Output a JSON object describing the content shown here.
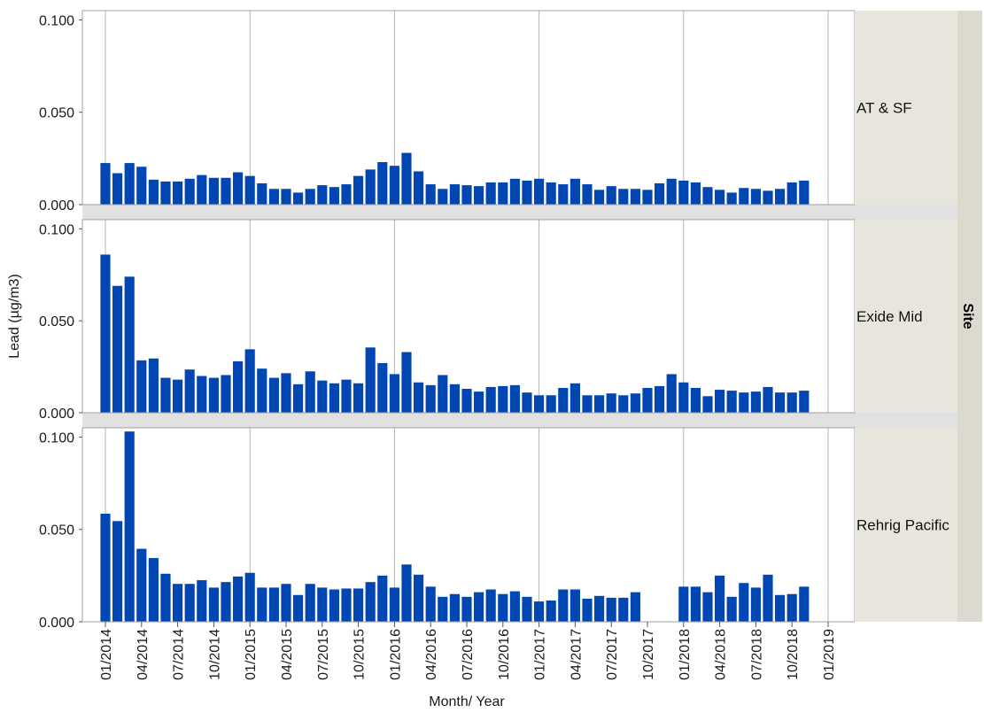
{
  "chart_data": {
    "type": "bar",
    "xlabel": "Month/ Year",
    "ylabel": "Lead (µg/m3)",
    "group_title": "Site",
    "ylim": [
      0,
      0.105
    ],
    "y_ticks": [
      "0.000",
      "0.050",
      "0.100"
    ],
    "x_ticks": [
      "01/2014",
      "04/2014",
      "07/2014",
      "10/2014",
      "01/2015",
      "04/2015",
      "07/2015",
      "10/2015",
      "01/2016",
      "04/2016",
      "07/2016",
      "10/2016",
      "01/2017",
      "04/2017",
      "07/2017",
      "10/2017",
      "01/2018",
      "04/2018",
      "07/2018",
      "10/2018",
      "01/2019"
    ],
    "x_start": "2014-01",
    "bar_color": "#0047b3",
    "panel_bg": "#e8e6dc",
    "group_bg": "#dcdace",
    "separator_bg": "#e1e1e1",
    "panels": [
      {
        "name": "AT & SF",
        "values": [
          0.0225,
          0.017,
          0.0225,
          0.0205,
          0.0135,
          0.0125,
          0.0125,
          0.014,
          0.016,
          0.0145,
          0.0145,
          0.0175,
          0.0155,
          0.0115,
          0.0085,
          0.0085,
          0.0065,
          0.0085,
          0.0105,
          0.0095,
          0.011,
          0.0155,
          0.019,
          0.023,
          0.021,
          0.028,
          0.018,
          0.011,
          0.0085,
          0.011,
          0.0105,
          0.01,
          0.012,
          0.012,
          0.014,
          0.013,
          0.014,
          0.012,
          0.011,
          0.014,
          0.011,
          0.008,
          0.01,
          0.0085,
          0.0085,
          0.008,
          0.0115,
          0.014,
          0.013,
          0.012,
          0.0095,
          0.008,
          0.0065,
          0.009,
          0.0085,
          0.0075,
          0.0085,
          0.012,
          0.013
        ]
      },
      {
        "name": "Exide Mid",
        "values": [
          0.086,
          0.069,
          0.074,
          0.0285,
          0.0295,
          0.019,
          0.018,
          0.0235,
          0.02,
          0.019,
          0.0205,
          0.028,
          0.0345,
          0.024,
          0.019,
          0.0215,
          0.0155,
          0.0225,
          0.0175,
          0.016,
          0.018,
          0.016,
          0.0355,
          0.027,
          0.021,
          0.033,
          0.0165,
          0.015,
          0.0205,
          0.0155,
          0.013,
          0.0115,
          0.014,
          0.0145,
          0.015,
          0.011,
          0.0095,
          0.0095,
          0.0135,
          0.016,
          0.0095,
          0.0095,
          0.0105,
          0.0095,
          0.0105,
          0.0135,
          0.0145,
          0.021,
          0.0165,
          0.0135,
          0.009,
          0.0125,
          0.012,
          0.011,
          0.0115,
          0.014,
          0.011,
          0.011,
          0.012
        ]
      },
      {
        "name": "Rehrig Pacific",
        "values": [
          0.0585,
          0.0545,
          0.103,
          0.0395,
          0.0345,
          0.026,
          0.0205,
          0.0205,
          0.0225,
          0.0185,
          0.0215,
          0.0245,
          0.0265,
          0.0185,
          0.0185,
          0.0205,
          0.0145,
          0.0205,
          0.0185,
          0.0175,
          0.018,
          0.018,
          0.0215,
          0.025,
          0.0185,
          0.031,
          0.0255,
          0.019,
          0.0135,
          0.015,
          0.0135,
          0.016,
          0.0175,
          0.015,
          0.0165,
          0.0135,
          0.011,
          0.0115,
          0.0175,
          0.0175,
          0.0125,
          0.014,
          0.013,
          0.013,
          0.016,
          null,
          null,
          null,
          0.019,
          0.019,
          0.016,
          0.025,
          0.0135,
          0.021,
          0.0185,
          0.0255,
          0.0145,
          0.015,
          0.019
        ]
      }
    ]
  }
}
